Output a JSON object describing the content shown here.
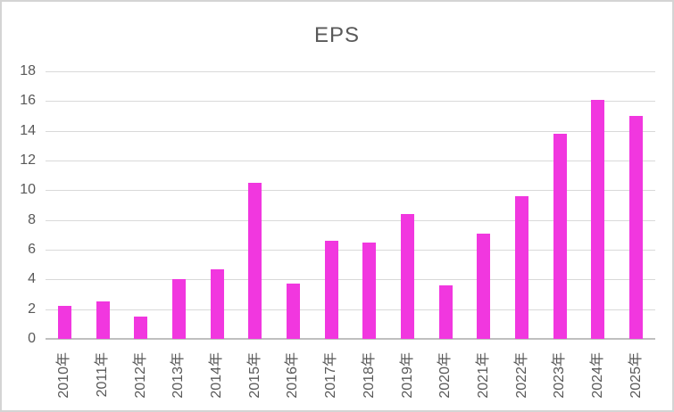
{
  "chart_data": {
    "type": "bar",
    "title": "EPS",
    "categories": [
      "2010年",
      "2011年",
      "2012年",
      "2013年",
      "2014年",
      "2015年",
      "2016年",
      "2017年",
      "2018年",
      "2019年",
      "2020年",
      "2021年",
      "2022年",
      "2023年",
      "2024年",
      "2025年"
    ],
    "values": [
      2.2,
      2.5,
      1.5,
      4.0,
      4.7,
      10.5,
      3.7,
      6.6,
      6.5,
      8.4,
      3.6,
      7.1,
      9.6,
      13.8,
      16.1,
      15.0
    ],
    "xlabel": "",
    "ylabel": "",
    "ylim": [
      0,
      18
    ],
    "ytick_step": 2,
    "grid": true,
    "legend": false,
    "colors": {
      "bar": "#f137df",
      "gridline": "#d9d9d9",
      "axis_line": "#bfbfbf",
      "tick_label": "#595959",
      "title": "#595959",
      "frame_border": "#d4d4d4",
      "background": "#ffffff"
    },
    "x_tick_rotation_deg": -90
  }
}
